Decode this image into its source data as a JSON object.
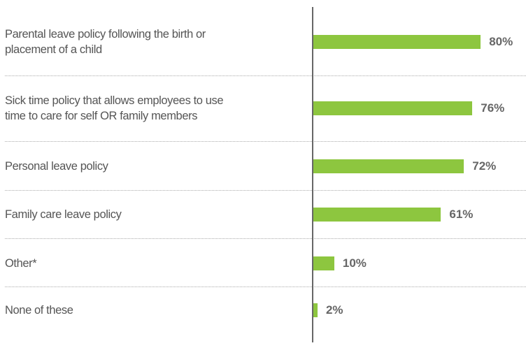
{
  "chart_data": {
    "type": "bar",
    "orientation": "horizontal",
    "categories": [
      "Parental leave policy following the birth or\nplacement of a child",
      "Sick time policy that allows employees to use\ntime to care for self OR family members",
      "Personal leave policy",
      "Family care leave policy",
      "Other*",
      "None of these"
    ],
    "values": [
      80,
      76,
      72,
      61,
      10,
      2
    ],
    "value_labels": [
      "80%",
      "76%",
      "72%",
      "61%",
      "10%",
      "2%"
    ],
    "color": "#8dc63f"
  }
}
